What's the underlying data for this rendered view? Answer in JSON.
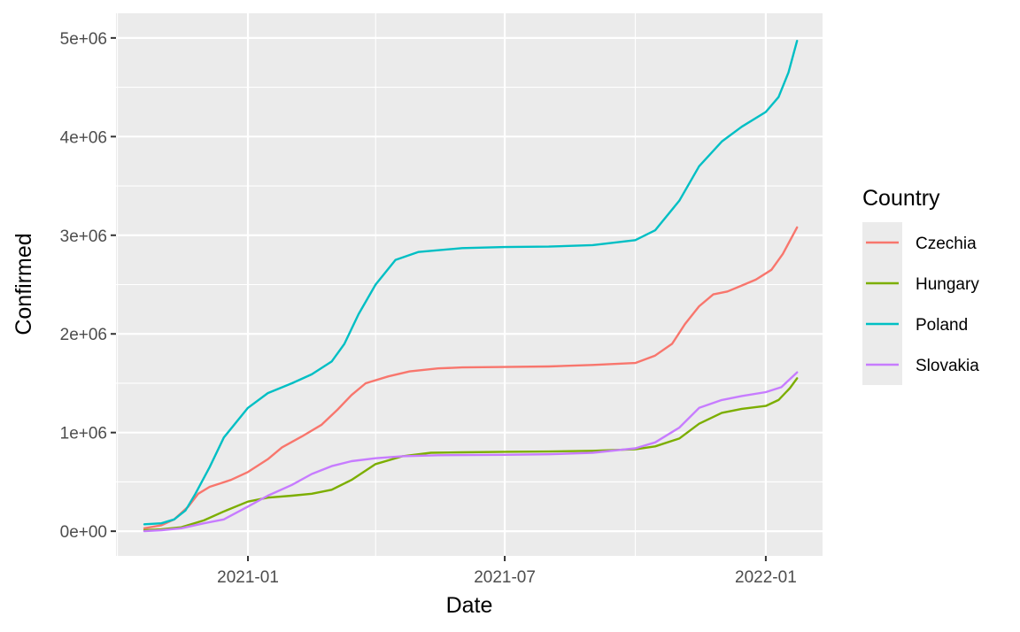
{
  "chart_data": {
    "type": "line",
    "xlabel": "Date",
    "ylabel": "Confirmed",
    "x_range": [
      "2020-09-30",
      "2022-02-10"
    ],
    "ylim": [
      -250000,
      5250000
    ],
    "x_ticks": [
      {
        "date": "2021-01-01",
        "label": "2021-01"
      },
      {
        "date": "2021-07-01",
        "label": "2021-07"
      },
      {
        "date": "2022-01-01",
        "label": "2022-01"
      }
    ],
    "x_minor_ticks": [
      "2020-10-01",
      "2021-04-01",
      "2021-10-01"
    ],
    "y_ticks": [
      {
        "value": 0,
        "label": "0e+00"
      },
      {
        "value": 1000000,
        "label": "1e+06"
      },
      {
        "value": 2000000,
        "label": "2e+06"
      },
      {
        "value": 3000000,
        "label": "3e+06"
      },
      {
        "value": 4000000,
        "label": "4e+06"
      },
      {
        "value": 5000000,
        "label": "5e+06"
      }
    ],
    "grid": true,
    "legend": {
      "title": "Country",
      "position": "right"
    },
    "series": [
      {
        "name": "Czechia",
        "color": "#F8766D",
        "points": [
          [
            "2020-10-20",
            30000
          ],
          [
            "2020-11-01",
            60000
          ],
          [
            "2020-11-10",
            120000
          ],
          [
            "2020-11-20",
            250000
          ],
          [
            "2020-11-27",
            380000
          ],
          [
            "2020-12-05",
            450000
          ],
          [
            "2020-12-20",
            520000
          ],
          [
            "2021-01-01",
            600000
          ],
          [
            "2021-01-15",
            730000
          ],
          [
            "2021-01-25",
            850000
          ],
          [
            "2021-02-08",
            960000
          ],
          [
            "2021-02-22",
            1080000
          ],
          [
            "2021-03-05",
            1230000
          ],
          [
            "2021-03-15",
            1380000
          ],
          [
            "2021-03-25",
            1500000
          ],
          [
            "2021-04-10",
            1570000
          ],
          [
            "2021-04-25",
            1620000
          ],
          [
            "2021-05-15",
            1650000
          ],
          [
            "2021-06-01",
            1660000
          ],
          [
            "2021-07-01",
            1665000
          ],
          [
            "2021-08-01",
            1670000
          ],
          [
            "2021-09-01",
            1685000
          ],
          [
            "2021-10-01",
            1705000
          ],
          [
            "2021-10-15",
            1780000
          ],
          [
            "2021-10-27",
            1900000
          ],
          [
            "2021-11-05",
            2100000
          ],
          [
            "2021-11-15",
            2280000
          ],
          [
            "2021-11-25",
            2400000
          ],
          [
            "2021-12-05",
            2430000
          ],
          [
            "2021-12-15",
            2490000
          ],
          [
            "2021-12-25",
            2550000
          ],
          [
            "2022-01-05",
            2650000
          ],
          [
            "2022-01-13",
            2810000
          ],
          [
            "2022-01-19",
            2970000
          ],
          [
            "2022-01-23",
            3080000
          ]
        ]
      },
      {
        "name": "Hungary",
        "color": "#7CAE00",
        "points": [
          [
            "2020-10-20",
            10000
          ],
          [
            "2020-11-01",
            20000
          ],
          [
            "2020-11-15",
            40000
          ],
          [
            "2020-12-01",
            110000
          ],
          [
            "2020-12-15",
            200000
          ],
          [
            "2021-01-01",
            300000
          ],
          [
            "2021-01-15",
            340000
          ],
          [
            "2021-02-01",
            360000
          ],
          [
            "2021-02-15",
            380000
          ],
          [
            "2021-03-01",
            420000
          ],
          [
            "2021-03-15",
            520000
          ],
          [
            "2021-04-01",
            680000
          ],
          [
            "2021-04-20",
            760000
          ],
          [
            "2021-05-10",
            795000
          ],
          [
            "2021-06-01",
            800000
          ],
          [
            "2021-07-01",
            805000
          ],
          [
            "2021-08-01",
            808000
          ],
          [
            "2021-09-01",
            815000
          ],
          [
            "2021-10-01",
            830000
          ],
          [
            "2021-10-15",
            860000
          ],
          [
            "2021-11-01",
            940000
          ],
          [
            "2021-11-15",
            1090000
          ],
          [
            "2021-12-01",
            1200000
          ],
          [
            "2021-12-15",
            1240000
          ],
          [
            "2022-01-01",
            1270000
          ],
          [
            "2022-01-10",
            1330000
          ],
          [
            "2022-01-18",
            1450000
          ],
          [
            "2022-01-23",
            1550000
          ]
        ]
      },
      {
        "name": "Poland",
        "color": "#00BFC4",
        "points": [
          [
            "2020-10-20",
            70000
          ],
          [
            "2020-11-01",
            80000
          ],
          [
            "2020-11-10",
            120000
          ],
          [
            "2020-11-18",
            210000
          ],
          [
            "2020-11-25",
            380000
          ],
          [
            "2020-12-05",
            650000
          ],
          [
            "2020-12-15",
            950000
          ],
          [
            "2021-01-01",
            1250000
          ],
          [
            "2021-01-15",
            1400000
          ],
          [
            "2021-02-01",
            1500000
          ],
          [
            "2021-02-15",
            1590000
          ],
          [
            "2021-03-01",
            1720000
          ],
          [
            "2021-03-10",
            1900000
          ],
          [
            "2021-03-20",
            2200000
          ],
          [
            "2021-04-01",
            2500000
          ],
          [
            "2021-04-15",
            2750000
          ],
          [
            "2021-05-01",
            2830000
          ],
          [
            "2021-06-01",
            2870000
          ],
          [
            "2021-07-01",
            2880000
          ],
          [
            "2021-08-01",
            2885000
          ],
          [
            "2021-09-01",
            2900000
          ],
          [
            "2021-10-01",
            2950000
          ],
          [
            "2021-10-15",
            3050000
          ],
          [
            "2021-11-01",
            3350000
          ],
          [
            "2021-11-15",
            3700000
          ],
          [
            "2021-12-01",
            3950000
          ],
          [
            "2021-12-15",
            4100000
          ],
          [
            "2022-01-01",
            4250000
          ],
          [
            "2022-01-10",
            4400000
          ],
          [
            "2022-01-17",
            4650000
          ],
          [
            "2022-01-23",
            4970000
          ]
        ]
      },
      {
        "name": "Slovakia",
        "color": "#C77CFF",
        "points": [
          [
            "2020-10-20",
            0
          ],
          [
            "2020-11-01",
            10000
          ],
          [
            "2020-11-15",
            30000
          ],
          [
            "2020-12-01",
            80000
          ],
          [
            "2020-12-15",
            120000
          ],
          [
            "2021-01-01",
            250000
          ],
          [
            "2021-01-15",
            360000
          ],
          [
            "2021-02-01",
            470000
          ],
          [
            "2021-02-15",
            580000
          ],
          [
            "2021-03-01",
            660000
          ],
          [
            "2021-03-15",
            710000
          ],
          [
            "2021-04-01",
            740000
          ],
          [
            "2021-04-20",
            760000
          ],
          [
            "2021-05-15",
            770000
          ],
          [
            "2021-07-01",
            775000
          ],
          [
            "2021-08-01",
            780000
          ],
          [
            "2021-09-01",
            795000
          ],
          [
            "2021-10-01",
            840000
          ],
          [
            "2021-10-15",
            900000
          ],
          [
            "2021-11-01",
            1050000
          ],
          [
            "2021-11-15",
            1250000
          ],
          [
            "2021-12-01",
            1330000
          ],
          [
            "2021-12-15",
            1370000
          ],
          [
            "2022-01-01",
            1410000
          ],
          [
            "2022-01-12",
            1460000
          ],
          [
            "2022-01-23",
            1610000
          ]
        ]
      }
    ]
  }
}
